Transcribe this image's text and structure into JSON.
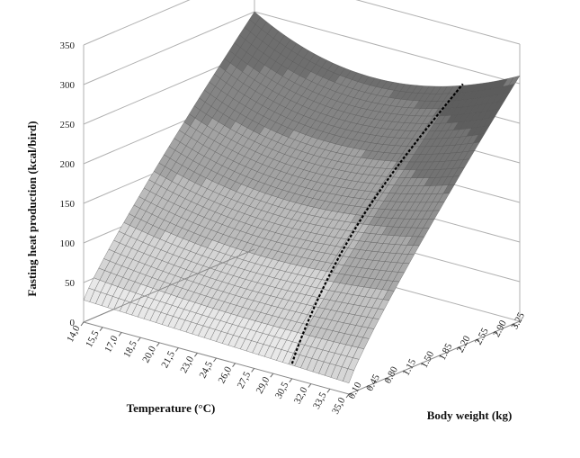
{
  "chart_data": {
    "type": "surface",
    "title": "",
    "zlabel": "Fasting heat production (kcal/bird)",
    "xlabel": "Temperature (°C)",
    "ylabel": "Body weight (kg)",
    "zlim": [
      0,
      350
    ],
    "z_ticks": [
      "0",
      "50",
      "100",
      "150",
      "200",
      "250",
      "300",
      "350"
    ],
    "temperature_ticks": [
      "14,0",
      "15,5",
      "17,0",
      "18,5",
      "20,0",
      "21,5",
      "23,0",
      "24,5",
      "26,0",
      "27,5",
      "29,0",
      "30,5",
      "32,0",
      "33,5",
      "35,0"
    ],
    "body_weight_ticks": [
      "0.10",
      "0.45",
      "0.80",
      "1.15",
      "1.50",
      "1.85",
      "2.20",
      "2.55",
      "2.90",
      "3.25"
    ],
    "temperature_range": [
      14.0,
      35.0
    ],
    "body_weight_range": [
      0.1,
      3.4
    ],
    "corner_values": {
      "t14_w0.10": 28,
      "t14_w3.40": 300,
      "t35_w0.10": 14,
      "t35_w3.40": 310
    },
    "min_curve_temperature": 30.5,
    "grid": true,
    "colors": {
      "surface_light": "#e8e8e8",
      "surface_dark": "#4a4a4a",
      "mesh": "#555555",
      "curve": "#000000",
      "grid": "#b0b0b0"
    }
  }
}
